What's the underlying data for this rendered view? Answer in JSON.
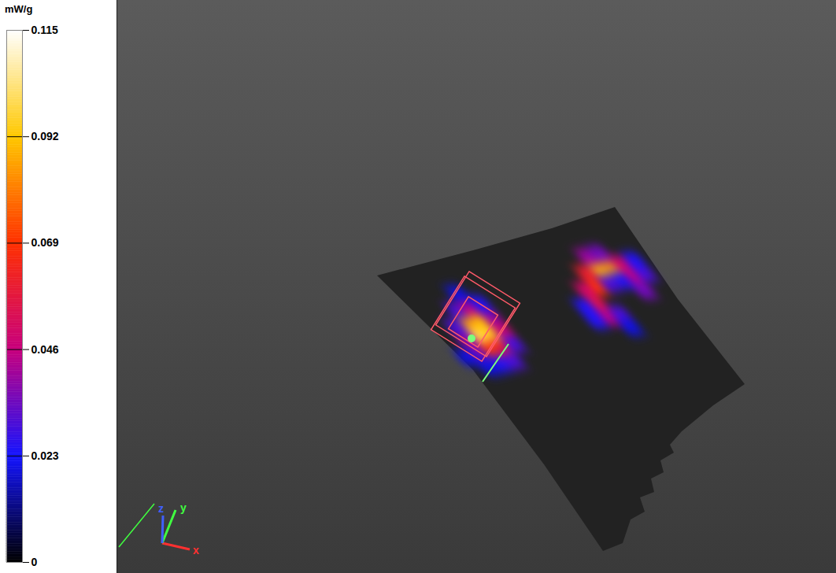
{
  "chart_data": {
    "type": "heatmap",
    "colorbar": {
      "label": "mW/g",
      "range": [
        0,
        0.115
      ],
      "ticks": [
        0,
        0.023,
        0.046,
        0.069,
        0.092,
        0.115
      ]
    },
    "axes_labels": [
      "x",
      "y",
      "z"
    ],
    "cells": [
      {
        "u": 3,
        "v": 4,
        "value": 0.085
      },
      {
        "u": 4,
        "v": 4,
        "value": 0.09
      },
      {
        "u": 3,
        "v": 5,
        "value": 0.1
      },
      {
        "u": 4,
        "v": 5,
        "value": 0.095
      },
      {
        "u": 2,
        "v": 5,
        "value": 0.04
      },
      {
        "u": 5,
        "v": 5,
        "value": 0.05
      },
      {
        "u": 3,
        "v": 6,
        "value": 0.07
      },
      {
        "u": 4,
        "v": 6,
        "value": 0.06
      },
      {
        "u": 2,
        "v": 6,
        "value": 0.035
      },
      {
        "u": 3,
        "v": 3,
        "value": 0.03
      },
      {
        "u": 4,
        "v": 3,
        "value": 0.045
      },
      {
        "u": 5,
        "v": 4,
        "value": 0.04
      },
      {
        "u": 2,
        "v": 4,
        "value": 0.03
      },
      {
        "u": 3,
        "v": 7,
        "value": 0.025
      },
      {
        "u": 4,
        "v": 7,
        "value": 0.03
      },
      {
        "u": 1,
        "v": 6,
        "value": 0.02
      },
      {
        "u": 5,
        "v": 6,
        "value": 0.03
      },
      {
        "u": 2,
        "v": 7,
        "value": 0.02
      },
      {
        "u": 5,
        "v": 3,
        "value": 0.025
      },
      {
        "u": 4,
        "v": 2,
        "value": 0.02
      },
      {
        "u": 15,
        "v": 3,
        "value": 0.09
      },
      {
        "u": 16,
        "v": 3,
        "value": 0.085
      },
      {
        "u": 14,
        "v": 3,
        "value": 0.06
      },
      {
        "u": 17,
        "v": 3,
        "value": 0.05
      },
      {
        "u": 15,
        "v": 2,
        "value": 0.04
      },
      {
        "u": 16,
        "v": 2,
        "value": 0.035
      },
      {
        "u": 14,
        "v": 4,
        "value": 0.07
      },
      {
        "u": 13,
        "v": 4,
        "value": 0.05
      },
      {
        "u": 13,
        "v": 5,
        "value": 0.055
      },
      {
        "u": 13,
        "v": 6,
        "value": 0.045
      },
      {
        "u": 14,
        "v": 6,
        "value": 0.03
      },
      {
        "u": 17,
        "v": 4,
        "value": 0.045
      },
      {
        "u": 18,
        "v": 4,
        "value": 0.03
      },
      {
        "u": 17,
        "v": 5,
        "value": 0.035
      },
      {
        "u": 16,
        "v": 4,
        "value": 0.025
      },
      {
        "u": 12,
        "v": 5,
        "value": 0.025
      },
      {
        "u": 12,
        "v": 6,
        "value": 0.025
      },
      {
        "u": 14,
        "v": 7,
        "value": 0.02
      },
      {
        "u": 18,
        "v": 3,
        "value": 0.025
      },
      {
        "u": 15,
        "v": 4,
        "value": 0.03
      }
    ]
  }
}
